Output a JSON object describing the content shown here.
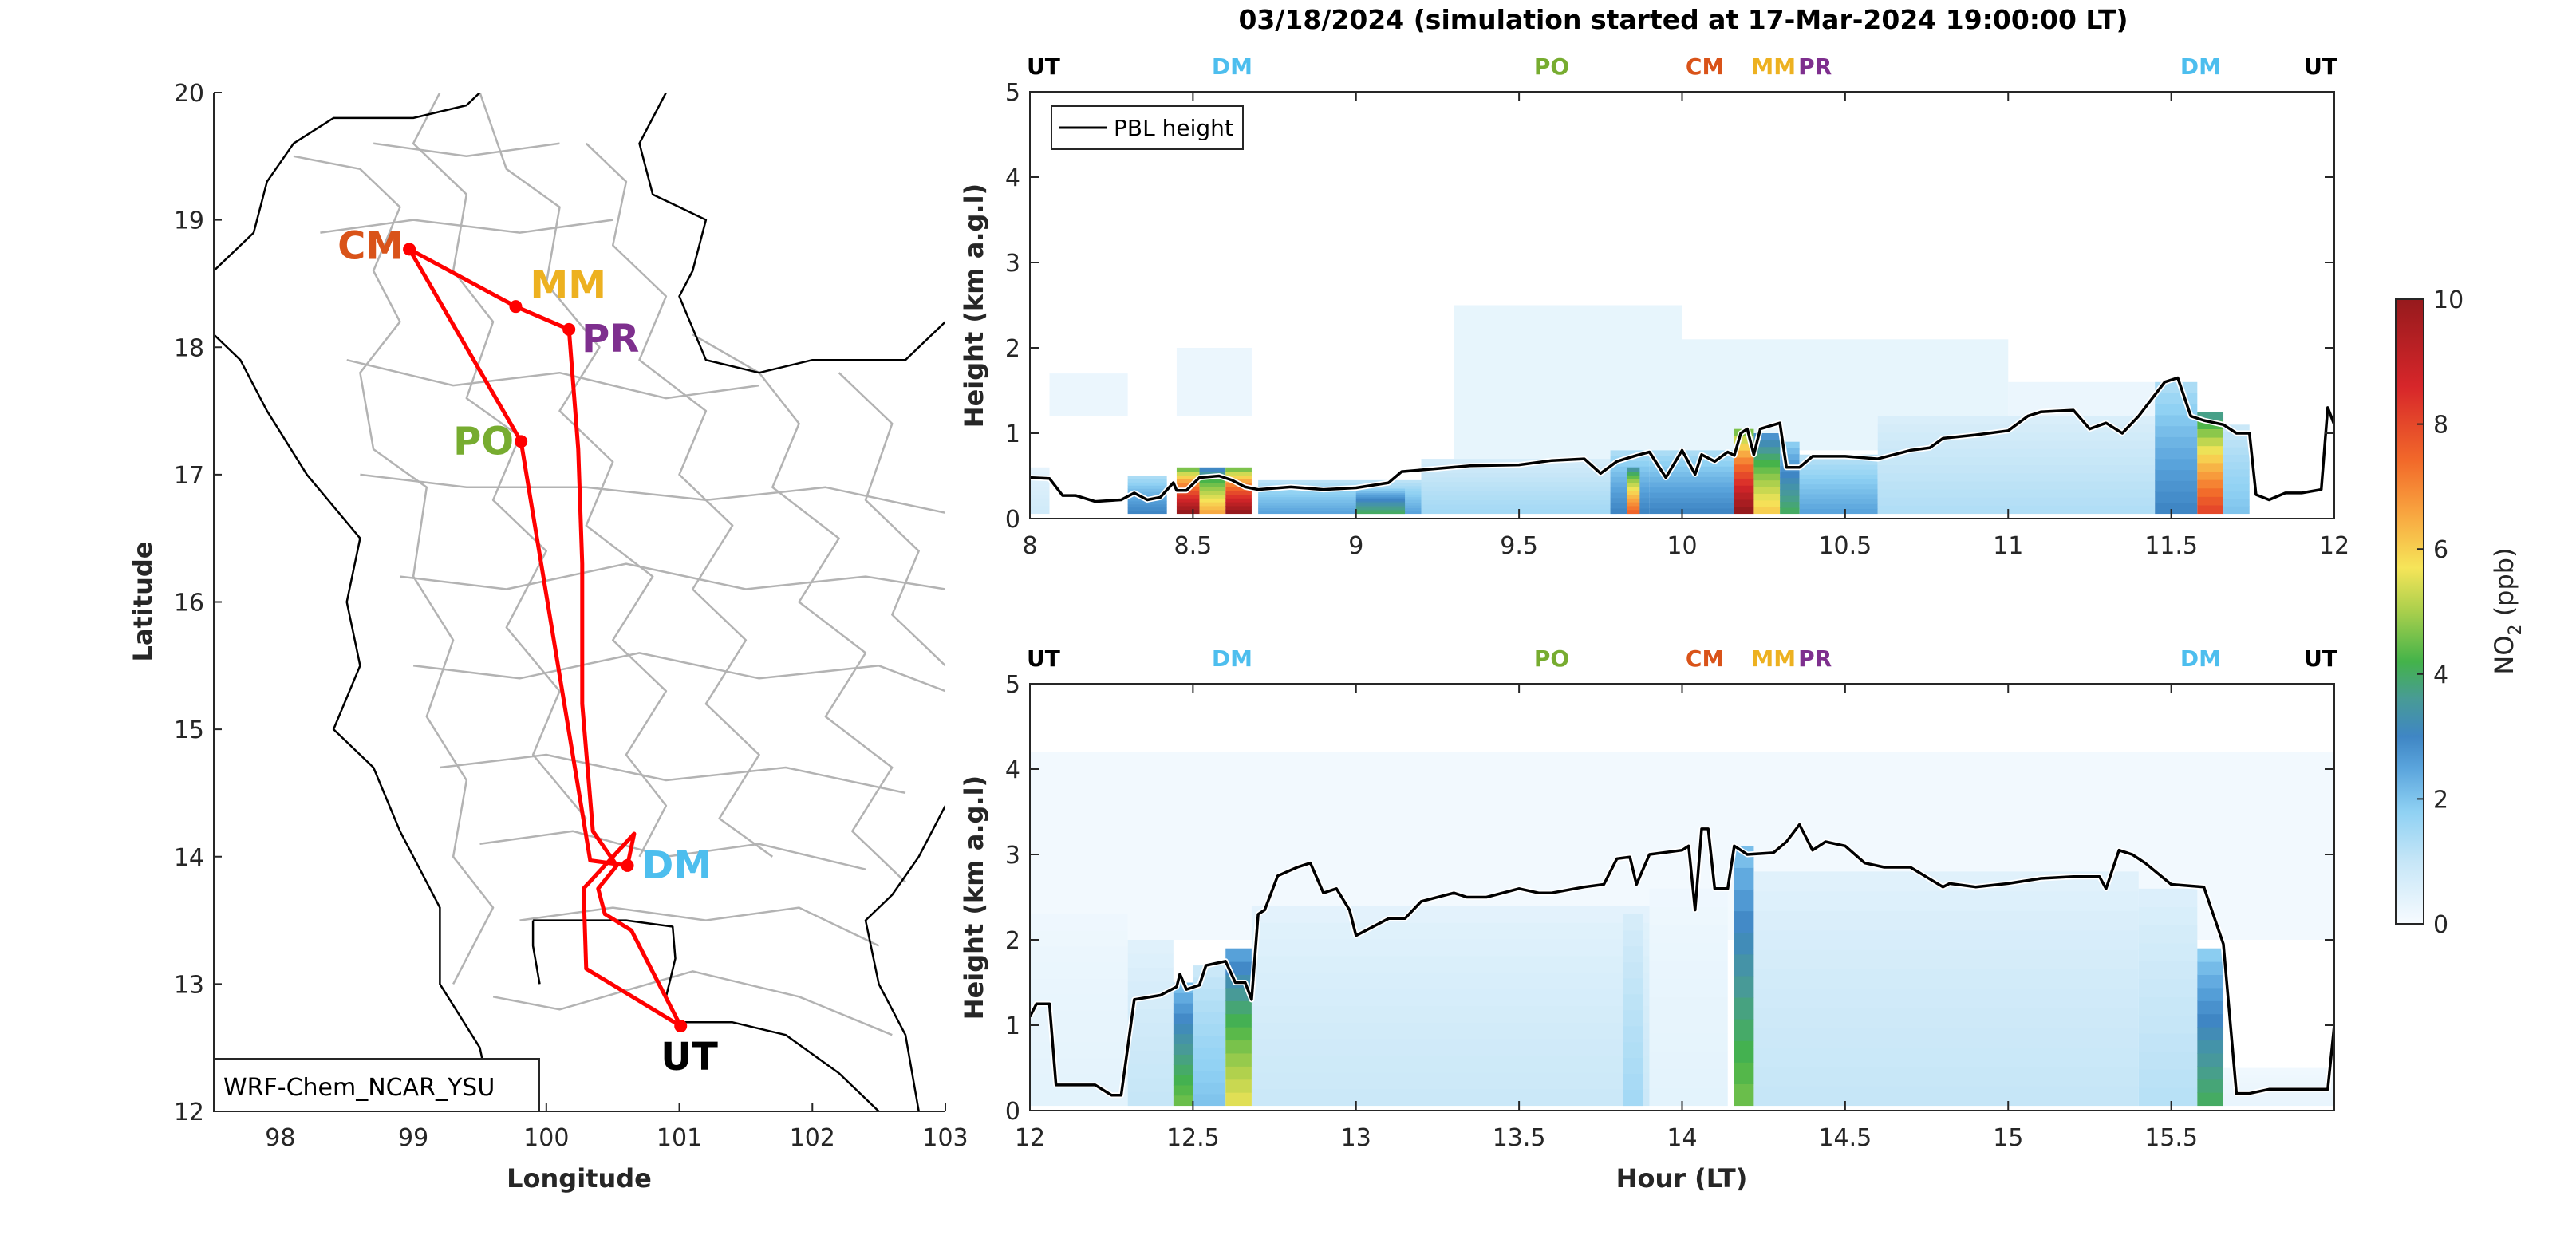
{
  "title": "03/18/2024 (simulation started at 17-Mar-2024 19:00:00 LT)",
  "colors": {
    "route": "#ff0000",
    "CM": "#d95319",
    "MM": "#edb120",
    "PR": "#7e2f8e",
    "PO": "#77ac30",
    "DM": "#4dbeee",
    "UT": "#000000",
    "pbl": "#000000"
  },
  "chart_data": [
    {
      "type": "map",
      "id": "flight-route-map",
      "xlabel": "Longitude",
      "ylabel": "Latitude",
      "xlim": [
        97.5,
        103
      ],
      "ylim": [
        12,
        20
      ],
      "xticks": [
        98,
        99,
        100,
        101,
        102,
        103
      ],
      "yticks": [
        12,
        13,
        14,
        15,
        16,
        17,
        18,
        19,
        20
      ],
      "annotation": "WRF-Chem_NCAR_YSU",
      "sites": [
        {
          "name": "CM",
          "lon": 98.97,
          "lat": 18.77
        },
        {
          "name": "MM",
          "lon": 99.77,
          "lat": 18.32
        },
        {
          "name": "PR",
          "lon": 100.17,
          "lat": 18.14
        },
        {
          "name": "PO",
          "lon": 99.81,
          "lat": 17.26
        },
        {
          "name": "DM",
          "lon": 100.61,
          "lat": 13.93
        },
        {
          "name": "UT",
          "lon": 101.01,
          "lat": 12.67
        }
      ],
      "route": [
        [
          101.01,
          12.67
        ],
        [
          100.3,
          13.12
        ],
        [
          100.28,
          13.75
        ],
        [
          100.66,
          14.18
        ],
        [
          100.61,
          13.93
        ],
        [
          100.33,
          13.97
        ],
        [
          99.81,
          17.26
        ],
        [
          98.97,
          18.77
        ],
        [
          99.77,
          18.32
        ],
        [
          100.17,
          18.14
        ],
        [
          100.24,
          17.2
        ],
        [
          100.27,
          16.3
        ],
        [
          100.27,
          15.2
        ],
        [
          100.35,
          14.2
        ],
        [
          100.53,
          13.93
        ],
        [
          100.39,
          13.75
        ],
        [
          100.44,
          13.55
        ],
        [
          100.64,
          13.42
        ],
        [
          101.01,
          12.67
        ]
      ]
    },
    {
      "type": "heatmap",
      "id": "curtain-top",
      "xlim": [
        8,
        12
      ],
      "ylim": [
        0,
        5
      ],
      "xticks": [
        8,
        8.5,
        9,
        9.5,
        10,
        10.5,
        11,
        11.5,
        12
      ],
      "yticks": [
        0,
        1,
        2,
        3,
        4,
        5
      ],
      "ylabel": "Height (km a.g.l)",
      "xlabel": "",
      "legend": {
        "entries": [
          "PBL height"
        ],
        "position": "top-left"
      },
      "site_markers": [
        {
          "name": "UT",
          "hour": 8.0
        },
        {
          "name": "DM",
          "hour": 8.62
        },
        {
          "name": "PO",
          "hour": 9.6
        },
        {
          "name": "CM",
          "hour": 10.07
        },
        {
          "name": "MM",
          "hour": 10.3
        },
        {
          "name": "PR",
          "hour": 10.41
        },
        {
          "name": "DM",
          "hour": 11.59
        },
        {
          "name": "UT",
          "hour": 12.0
        }
      ],
      "pbl_height": {
        "hours": [
          8.0,
          8.06,
          8.1,
          8.14,
          8.2,
          8.28,
          8.32,
          8.36,
          8.4,
          8.44,
          8.45,
          8.48,
          8.52,
          8.58,
          8.62,
          8.66,
          8.7,
          8.8,
          8.9,
          9.0,
          9.1,
          9.14,
          9.2,
          9.35,
          9.5,
          9.6,
          9.7,
          9.75,
          9.8,
          9.86,
          9.9,
          9.95,
          10.0,
          10.04,
          10.06,
          10.1,
          10.14,
          10.16,
          10.18,
          10.2,
          10.22,
          10.24,
          10.3,
          10.32,
          10.36,
          10.4,
          10.5,
          10.6,
          10.7,
          10.76,
          10.8,
          10.9,
          11.0,
          11.06,
          11.1,
          11.2,
          11.25,
          11.3,
          11.35,
          11.4,
          11.44,
          11.48,
          11.52,
          11.56,
          11.6,
          11.66,
          11.7,
          11.74,
          11.76,
          11.8,
          11.85,
          11.9,
          11.96,
          11.98,
          12.0
        ],
        "km": [
          0.48,
          0.47,
          0.27,
          0.27,
          0.2,
          0.22,
          0.3,
          0.22,
          0.25,
          0.42,
          0.33,
          0.33,
          0.48,
          0.5,
          0.45,
          0.37,
          0.34,
          0.37,
          0.34,
          0.36,
          0.42,
          0.55,
          0.57,
          0.62,
          0.63,
          0.68,
          0.7,
          0.53,
          0.67,
          0.74,
          0.78,
          0.48,
          0.8,
          0.52,
          0.75,
          0.67,
          0.78,
          0.74,
          1.0,
          1.05,
          0.75,
          1.05,
          1.12,
          0.6,
          0.6,
          0.73,
          0.73,
          0.7,
          0.8,
          0.83,
          0.94,
          0.98,
          1.03,
          1.2,
          1.25,
          1.27,
          1.05,
          1.12,
          1.0,
          1.2,
          1.4,
          1.6,
          1.65,
          1.2,
          1.15,
          1.1,
          1.0,
          1.0,
          0.28,
          0.22,
          0.3,
          0.3,
          0.34,
          1.3,
          1.1
        ]
      },
      "no2_columns": [
        {
          "h0": 8.0,
          "h1": 8.06,
          "top": 0.6,
          "max_ppb": 0.8
        },
        {
          "h0": 8.3,
          "h1": 8.42,
          "top": 0.5,
          "max_ppb": 3.0
        },
        {
          "h0": 8.45,
          "h1": 8.52,
          "top": 0.6,
          "max_ppb": 10
        },
        {
          "h0": 8.52,
          "h1": 8.6,
          "top": 0.6,
          "max_ppb": 6.5
        },
        {
          "h0": 8.6,
          "h1": 8.68,
          "top": 0.6,
          "max_ppb": 10
        },
        {
          "h0": 8.7,
          "h1": 9.2,
          "top": 0.45,
          "max_ppb": 2.5
        },
        {
          "h0": 9.0,
          "h1": 9.15,
          "top": 0.35,
          "max_ppb": 4.0
        },
        {
          "h0": 9.2,
          "h1": 9.8,
          "top": 0.7,
          "max_ppb": 1.5
        },
        {
          "h0": 9.78,
          "h1": 9.9,
          "top": 0.8,
          "max_ppb": 3.0
        },
        {
          "h0": 9.83,
          "h1": 9.87,
          "top": 0.6,
          "max_ppb": 7.5
        },
        {
          "h0": 9.9,
          "h1": 10.16,
          "top": 0.8,
          "max_ppb": 3.0
        },
        {
          "h0": 10.16,
          "h1": 10.22,
          "top": 1.05,
          "max_ppb": 10
        },
        {
          "h0": 10.22,
          "h1": 10.3,
          "top": 1.0,
          "max_ppb": 6.0
        },
        {
          "h0": 10.3,
          "h1": 10.36,
          "top": 0.9,
          "max_ppb": 4.0
        },
        {
          "h0": 10.36,
          "h1": 10.6,
          "top": 0.75,
          "max_ppb": 2.5
        },
        {
          "h0": 10.6,
          "h1": 11.45,
          "top": 1.2,
          "max_ppb": 1.3
        },
        {
          "h0": 11.45,
          "h1": 11.58,
          "top": 1.6,
          "max_ppb": 3.0
        },
        {
          "h0": 11.58,
          "h1": 11.66,
          "top": 1.25,
          "max_ppb": 8.0
        },
        {
          "h0": 11.66,
          "h1": 11.74,
          "top": 1.1,
          "max_ppb": 2.0
        }
      ],
      "no2_haze": [
        {
          "h0": 8.06,
          "h1": 8.3,
          "bottom": 1.2,
          "top": 1.7,
          "ppb": 0.3
        },
        {
          "h0": 8.45,
          "h1": 8.68,
          "bottom": 1.2,
          "top": 2.0,
          "ppb": 0.3
        },
        {
          "h0": 9.3,
          "h1": 10.0,
          "bottom": 0.7,
          "top": 2.5,
          "ppb": 0.4
        },
        {
          "h0": 10.0,
          "h1": 11.0,
          "bottom": 0.8,
          "top": 2.1,
          "ppb": 0.4
        },
        {
          "h0": 11.0,
          "h1": 11.45,
          "bottom": 1.0,
          "top": 1.6,
          "ppb": 0.3
        }
      ]
    },
    {
      "type": "heatmap",
      "id": "curtain-bottom",
      "xlim": [
        12,
        16
      ],
      "ylim": [
        0,
        5
      ],
      "xticks": [
        12,
        12.5,
        13,
        13.5,
        14,
        14.5,
        15,
        15.5
      ],
      "yticks": [
        0,
        1,
        2,
        3,
        4,
        5
      ],
      "ylabel": "Height (km a.g.l)",
      "xlabel": "Hour (LT)",
      "site_markers": [
        {
          "name": "UT",
          "hour": 12.0
        },
        {
          "name": "DM",
          "hour": 12.62
        },
        {
          "name": "PO",
          "hour": 13.6
        },
        {
          "name": "CM",
          "hour": 14.07
        },
        {
          "name": "MM",
          "hour": 14.3
        },
        {
          "name": "PR",
          "hour": 14.41
        },
        {
          "name": "DM",
          "hour": 15.59
        },
        {
          "name": "UT",
          "hour": 16.0
        }
      ],
      "pbl_height": {
        "hours": [
          12.0,
          12.02,
          12.06,
          12.08,
          12.2,
          12.25,
          12.28,
          12.32,
          12.4,
          12.45,
          12.46,
          12.48,
          12.52,
          12.54,
          12.6,
          12.63,
          12.66,
          12.68,
          12.7,
          12.72,
          12.76,
          12.82,
          12.86,
          12.9,
          12.94,
          12.98,
          13.0,
          13.1,
          13.15,
          13.2,
          13.3,
          13.34,
          13.4,
          13.5,
          13.56,
          13.6,
          13.7,
          13.76,
          13.8,
          13.84,
          13.86,
          13.9,
          14.0,
          14.02,
          14.04,
          14.06,
          14.08,
          14.1,
          14.14,
          14.16,
          14.2,
          14.28,
          14.32,
          14.36,
          14.4,
          14.44,
          14.5,
          14.56,
          14.62,
          14.7,
          14.8,
          14.82,
          14.9,
          15.0,
          15.1,
          15.2,
          15.28,
          15.3,
          15.34,
          15.38,
          15.42,
          15.5,
          15.6,
          15.66,
          15.7,
          15.74,
          15.8,
          15.9,
          15.98,
          16.0
        ],
        "km": [
          1.1,
          1.25,
          1.25,
          0.3,
          0.3,
          0.18,
          0.18,
          1.3,
          1.35,
          1.45,
          1.6,
          1.42,
          1.47,
          1.7,
          1.75,
          1.5,
          1.5,
          1.3,
          2.3,
          2.35,
          2.75,
          2.85,
          2.9,
          2.55,
          2.6,
          2.35,
          2.05,
          2.25,
          2.25,
          2.45,
          2.55,
          2.5,
          2.5,
          2.6,
          2.55,
          2.55,
          2.62,
          2.65,
          2.95,
          2.97,
          2.65,
          3.0,
          3.05,
          3.1,
          2.35,
          3.3,
          3.3,
          2.6,
          2.6,
          3.1,
          3.0,
          3.02,
          3.15,
          3.35,
          3.05,
          3.15,
          3.1,
          2.9,
          2.85,
          2.85,
          2.62,
          2.66,
          2.62,
          2.66,
          2.72,
          2.74,
          2.74,
          2.6,
          3.05,
          3.0,
          2.9,
          2.65,
          2.62,
          1.95,
          0.2,
          0.2,
          0.25,
          0.25,
          0.25,
          1.0
        ]
      },
      "no2_columns": [
        {
          "h0": 12.0,
          "h1": 12.3,
          "top": 2.3,
          "max_ppb": 0.4
        },
        {
          "h0": 12.3,
          "h1": 12.44,
          "top": 2.0,
          "max_ppb": 1.0
        },
        {
          "h0": 12.44,
          "h1": 12.5,
          "top": 1.5,
          "max_ppb": 4.5
        },
        {
          "h0": 12.5,
          "h1": 12.6,
          "top": 1.7,
          "max_ppb": 2.0
        },
        {
          "h0": 12.6,
          "h1": 12.68,
          "top": 1.9,
          "max_ppb": 5.5
        },
        {
          "h0": 12.68,
          "h1": 13.9,
          "top": 2.4,
          "max_ppb": 0.9
        },
        {
          "h0": 13.82,
          "h1": 13.88,
          "top": 2.3,
          "max_ppb": 1.5
        },
        {
          "h0": 13.9,
          "h1": 14.14,
          "top": 2.6,
          "max_ppb": 0.4
        },
        {
          "h0": 14.16,
          "h1": 14.22,
          "top": 3.1,
          "max_ppb": 4.5
        },
        {
          "h0": 14.22,
          "h1": 15.4,
          "top": 2.8,
          "max_ppb": 1.0
        },
        {
          "h0": 15.4,
          "h1": 15.58,
          "top": 2.6,
          "max_ppb": 1.2
        },
        {
          "h0": 15.58,
          "h1": 15.66,
          "top": 1.9,
          "max_ppb": 4.0
        },
        {
          "h0": 15.66,
          "h1": 16.0,
          "top": 0.5,
          "max_ppb": 0.3
        }
      ],
      "no2_haze": [
        {
          "h0": 12.0,
          "h1": 16.0,
          "bottom": 2.0,
          "top": 4.2,
          "ppb": 0.15
        }
      ]
    },
    {
      "type": "colorbar",
      "id": "no2-colorbar",
      "label": "NO2 (ppb)",
      "label_main": "NO",
      "label_sub": "2",
      "label_unit": " (ppb)",
      "clim": [
        0,
        10
      ],
      "ticks": [
        0,
        2,
        4,
        6,
        8,
        10
      ],
      "colormap_stops": [
        {
          "v": 0,
          "c": "#f7fbff"
        },
        {
          "v": 1,
          "c": "#c6e6f7"
        },
        {
          "v": 1.8,
          "c": "#8fd1f3"
        },
        {
          "v": 2.5,
          "c": "#5aa4dc"
        },
        {
          "v": 3.0,
          "c": "#3f86c4"
        },
        {
          "v": 3.6,
          "c": "#489b96"
        },
        {
          "v": 4.2,
          "c": "#44b34a"
        },
        {
          "v": 5.0,
          "c": "#a9cf4c"
        },
        {
          "v": 5.7,
          "c": "#f6e559"
        },
        {
          "v": 6.6,
          "c": "#f8a33f"
        },
        {
          "v": 7.4,
          "c": "#f26a2a"
        },
        {
          "v": 8.6,
          "c": "#d7262a"
        },
        {
          "v": 10,
          "c": "#961a1d"
        }
      ]
    }
  ]
}
